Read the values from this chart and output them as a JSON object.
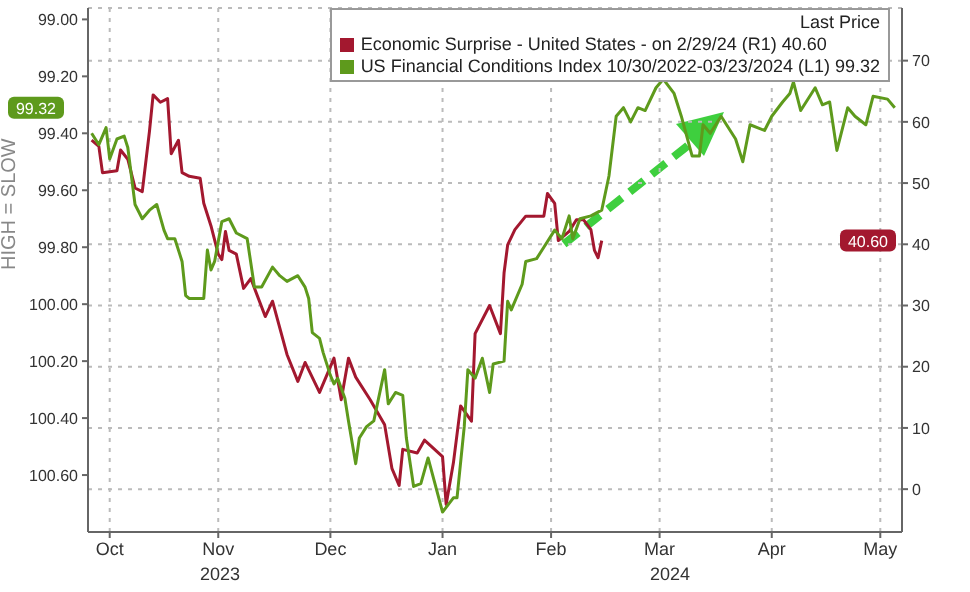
{
  "chart_data": {
    "type": "line",
    "ylabel": "HIGH = SLOW",
    "legend_title": "Last Price",
    "legend": "top right",
    "grid": true,
    "xlim": [
      "2023-10-10",
      "2024-05-22"
    ],
    "xticks": [
      {
        "value": "2023-10-16",
        "label": "Oct"
      },
      {
        "value": "2023-11-15",
        "label": "Nov"
      },
      {
        "value": "2023-12-16",
        "label": "Dec"
      },
      {
        "value": "2024-01-16",
        "label": "Jan"
      },
      {
        "value": "2024-02-15",
        "label": "Feb"
      },
      {
        "value": "2024-03-16",
        "label": "Mar"
      },
      {
        "value": "2024-04-16",
        "label": "Apr"
      },
      {
        "value": "2024-05-16",
        "label": "May"
      }
    ],
    "ylim": [
      100.8,
      98.96
    ],
    "yticks": [
      {
        "value": 99,
        "label": "99.00"
      },
      {
        "value": 99.2,
        "label": "99.20"
      },
      {
        "value": 99.4,
        "label": "99.40"
      },
      {
        "value": 99.6,
        "label": "99.60"
      },
      {
        "value": 99.8,
        "label": "99.80"
      },
      {
        "value": 100,
        "label": "100.00"
      },
      {
        "value": 100.2,
        "label": "100.20"
      },
      {
        "value": 100.4,
        "label": "100.40"
      },
      {
        "value": 100.6,
        "label": "100.60"
      }
    ],
    "y2lim": [
      -7,
      78.6
    ],
    "y2ticks": [
      0,
      10,
      20,
      30,
      40,
      50,
      60,
      70
    ],
    "annotations": [
      "40.60",
      "99.32",
      "2023",
      "2024"
    ],
    "series": [
      {
        "name": "Economic Surprise - United States - on 2/29/24 (R1) 40.60",
        "color": "#a3182f",
        "axis": "y2",
        "x": [
          "2023-10-11",
          "2023-10-13",
          "2023-10-14",
          "2023-10-18",
          "2023-10-19",
          "2023-10-21",
          "2023-10-23",
          "2023-10-25",
          "2023-10-27",
          "2023-10-28",
          "2023-10-30",
          "2023-11-01",
          "2023-11-02",
          "2023-11-04",
          "2023-11-05",
          "2023-11-07",
          "2023-11-10",
          "2023-11-11",
          "2023-11-13",
          "2023-11-15",
          "2023-11-16",
          "2023-11-17",
          "2023-11-18",
          "2023-11-20",
          "2023-11-22",
          "2023-11-24",
          "2023-11-28",
          "2023-11-30",
          "2023-12-04",
          "2023-12-07",
          "2023-12-09",
          "2023-12-13",
          "2023-12-17",
          "2023-12-19",
          "2023-12-21",
          "2023-12-23",
          "2023-12-27",
          "2023-12-31",
          "2024-01-02",
          "2024-01-04",
          "2024-01-05",
          "2024-01-09",
          "2024-01-11",
          "2024-01-16",
          "2024-01-17",
          "2024-01-19",
          "2024-01-21",
          "2024-01-24",
          "2024-01-25",
          "2024-01-29",
          "2024-02-01",
          "2024-02-02",
          "2024-02-03",
          "2024-02-05",
          "2024-02-08",
          "2024-02-11",
          "2024-02-13",
          "2024-02-14",
          "2024-02-16",
          "2024-02-17",
          "2024-02-20",
          "2024-02-22",
          "2024-02-24",
          "2024-02-26",
          "2024-02-27",
          "2024-02-28",
          "2024-02-29"
        ],
        "values": [
          57,
          56,
          51.7,
          52,
          55.4,
          53.9,
          49.2,
          48.6,
          58.5,
          64.4,
          63.2,
          63.8,
          54.8,
          57,
          51.7,
          51.1,
          50.8,
          46.7,
          43,
          38.4,
          37.5,
          42.1,
          39,
          38.4,
          32.8,
          34.4,
          28.2,
          30.7,
          22,
          17.6,
          20.7,
          15.8,
          21.4,
          14.6,
          21.4,
          18.3,
          14.6,
          10.5,
          3.4,
          0.6,
          6.5,
          5.9,
          8,
          5.3,
          -2.5,
          4.3,
          13.6,
          11.1,
          25.4,
          30,
          25.4,
          35.3,
          39.9,
          42.4,
          44.6,
          44.6,
          44.6,
          48.3,
          46.7,
          40.6,
          42.1,
          44,
          44,
          42.4,
          39,
          37.8,
          40.6
        ]
      },
      {
        "name": "US Financial Conditions Index 10/30/2022-03/23/2024 (L1) 99.32",
        "color": "#5e9a1c",
        "x": [
          "2023-10-11",
          "2023-10-13",
          "2023-10-15",
          "2023-10-16",
          "2023-10-18",
          "2023-10-20",
          "2023-10-21",
          "2023-10-23",
          "2023-10-25",
          "2023-10-27",
          "2023-10-29",
          "2023-10-31",
          "2023-11-01",
          "2023-11-03",
          "2023-11-05",
          "2023-11-06",
          "2023-11-07",
          "2023-11-11",
          "2023-11-12",
          "2023-11-13",
          "2023-11-14",
          "2023-11-16",
          "2023-11-18",
          "2023-11-20",
          "2023-11-23",
          "2023-11-25",
          "2023-11-27",
          "2023-11-30",
          "2023-12-02",
          "2023-12-04",
          "2023-12-07",
          "2023-12-09",
          "2023-12-10",
          "2023-12-11",
          "2023-12-13",
          "2023-12-14",
          "2023-12-16",
          "2023-12-17",
          "2023-12-18",
          "2023-12-20",
          "2023-12-21",
          "2023-12-23",
          "2023-12-24",
          "2023-12-26",
          "2023-12-28",
          "2023-12-31",
          "2024-01-01",
          "2024-01-03",
          "2024-01-05",
          "2024-01-06",
          "2024-01-08",
          "2024-01-10",
          "2024-01-12",
          "2024-01-16",
          "2024-01-19",
          "2024-01-20",
          "2024-01-22",
          "2024-01-23",
          "2024-01-25",
          "2024-01-27",
          "2024-01-29",
          "2024-01-30",
          "2024-02-02",
          "2024-02-03",
          "2024-02-04",
          "2024-02-07",
          "2024-02-08",
          "2024-02-11",
          "2024-02-13",
          "2024-02-16",
          "2024-02-18",
          "2024-02-20",
          "2024-02-21",
          "2024-02-23",
          "2024-02-26",
          "2024-02-29",
          "2024-03-02",
          "2024-03-04",
          "2024-03-06",
          "2024-03-08",
          "2024-03-10",
          "2024-03-12",
          "2024-03-15",
          "2024-03-17",
          "2024-03-20",
          "2024-03-22",
          "2024-03-25",
          "2024-03-27",
          "2024-03-28",
          "2024-03-30",
          "2024-04-02",
          "2024-04-06",
          "2024-04-08",
          "2024-04-10",
          "2024-04-14",
          "2024-04-16",
          "2024-04-19",
          "2024-04-21",
          "2024-04-22",
          "2024-04-24",
          "2024-04-28",
          "2024-04-30",
          "2024-05-02",
          "2024-05-04",
          "2024-05-07",
          "2024-05-09",
          "2024-05-12",
          "2024-05-14",
          "2024-05-18",
          "2024-05-20"
        ],
        "values": [
          99.4,
          99.44,
          99.38,
          99.49,
          99.42,
          99.41,
          99.45,
          99.65,
          99.7,
          99.67,
          99.65,
          99.74,
          99.77,
          99.77,
          99.85,
          99.97,
          99.98,
          99.98,
          99.81,
          99.88,
          99.85,
          99.71,
          99.7,
          99.75,
          99.77,
          99.94,
          99.94,
          99.87,
          99.9,
          99.92,
          99.9,
          99.94,
          99.98,
          100.1,
          100.12,
          100.17,
          100.25,
          100.28,
          100.26,
          100.33,
          100.41,
          100.56,
          100.47,
          100.43,
          100.41,
          100.23,
          100.35,
          100.31,
          100.32,
          100.47,
          100.64,
          100.63,
          100.54,
          100.73,
          100.68,
          100.68,
          100.43,
          100.23,
          100.26,
          100.19,
          100.31,
          100.21,
          100.2,
          99.99,
          100.02,
          99.93,
          99.85,
          99.84,
          99.8,
          99.74,
          99.77,
          99.69,
          99.77,
          99.7,
          99.69,
          99.67,
          99.55,
          99.34,
          99.31,
          99.36,
          99.31,
          99.32,
          99.24,
          99.21,
          99.26,
          99.34,
          99.48,
          99.48,
          99.37,
          99.4,
          99.34,
          99.42,
          99.5,
          99.37,
          99.39,
          99.34,
          99.29,
          99.26,
          99.22,
          99.32,
          99.24,
          99.3,
          99.29,
          99.46,
          99.31,
          99.34,
          99.37,
          99.27,
          99.28,
          99.31
        ]
      }
    ]
  }
}
